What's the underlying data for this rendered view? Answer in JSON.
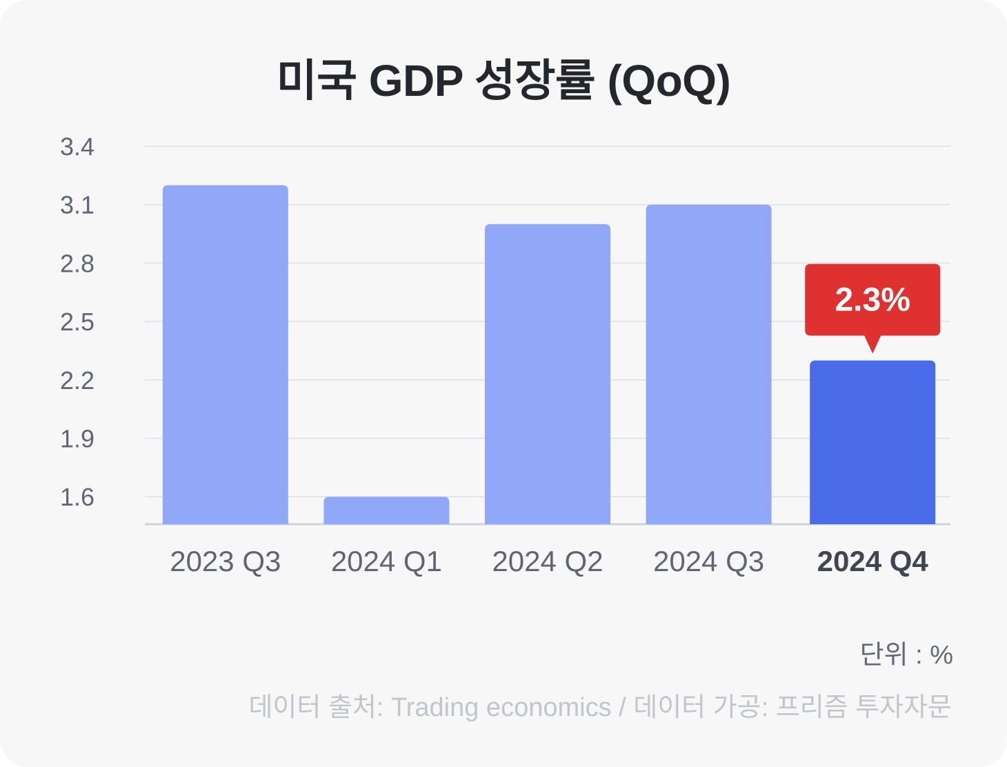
{
  "chart_data": {
    "type": "bar",
    "title": "미국 GDP 성장률 (QoQ)",
    "categories": [
      "2023 Q3",
      "2024 Q1",
      "2024 Q2",
      "2024 Q3",
      "2024 Q4"
    ],
    "values": [
      3.2,
      1.6,
      3.0,
      3.1,
      2.3
    ],
    "y_ticks": [
      "3.4",
      "3.1",
      "2.8",
      "2.5",
      "2.2",
      "1.9",
      "1.6"
    ],
    "ylim": [
      1.5,
      3.4
    ],
    "grid": true,
    "highlight": {
      "index": 4,
      "label": "2.3%"
    },
    "colors": {
      "bar": "#91a8f8",
      "highlight_bar": "#4a6ceb",
      "callout": "#e03131"
    },
    "unit_label": "단위 : %",
    "source": "데이터 출처: Trading economics / 데이터 가공: 프리즘 투자자문"
  }
}
